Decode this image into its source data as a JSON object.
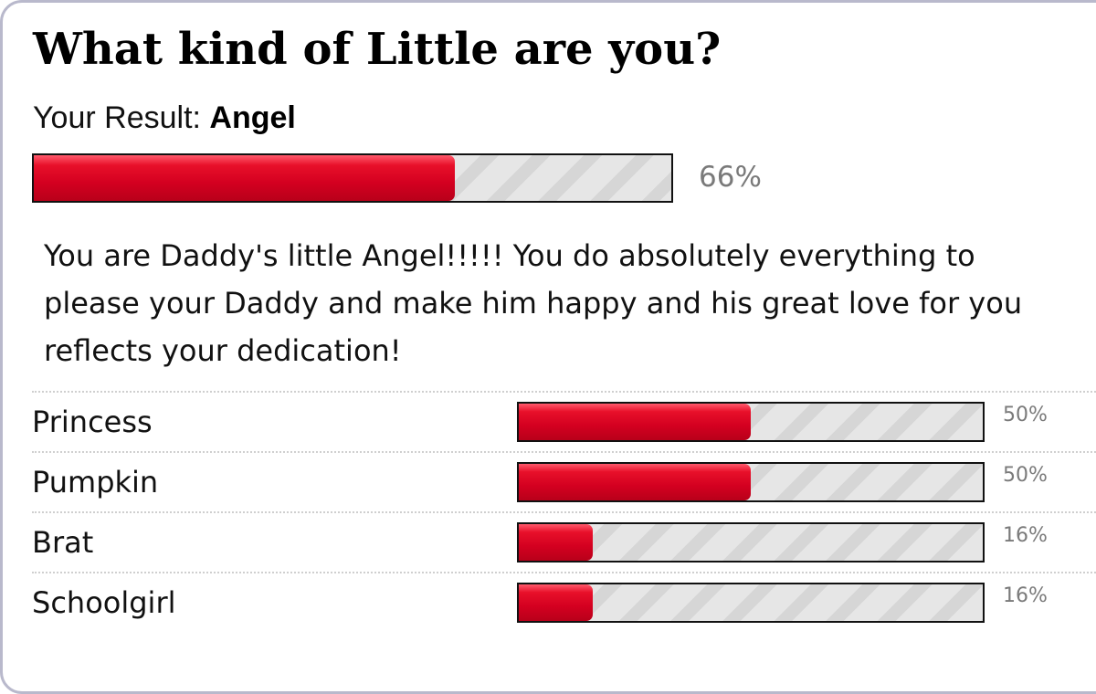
{
  "quiz": {
    "title": "What kind of Little are you?",
    "result_prefix": "Your Result:",
    "result_name": "Angel",
    "result_percent_label": "66%",
    "result_fraction": 0.66,
    "description": "You are Daddy's little Angel!!!!! You do absolutely everything to please your Daddy and make him happy and his great love for you reflects your dedication!"
  },
  "results": [
    {
      "label": "Princess",
      "percent_label": "50%",
      "fraction": 0.5
    },
    {
      "label": "Pumpkin",
      "percent_label": "50%",
      "fraction": 0.5
    },
    {
      "label": "Brat",
      "percent_label": "16%",
      "fraction": 0.16
    },
    {
      "label": "Schoolgirl",
      "percent_label": "16%",
      "fraction": 0.16
    }
  ],
  "colors": {
    "bar_fill": "#d40020",
    "bar_track": "#e6e6e6",
    "percent_text": "#7a7a7a",
    "card_border": "#b9b9cc"
  }
}
